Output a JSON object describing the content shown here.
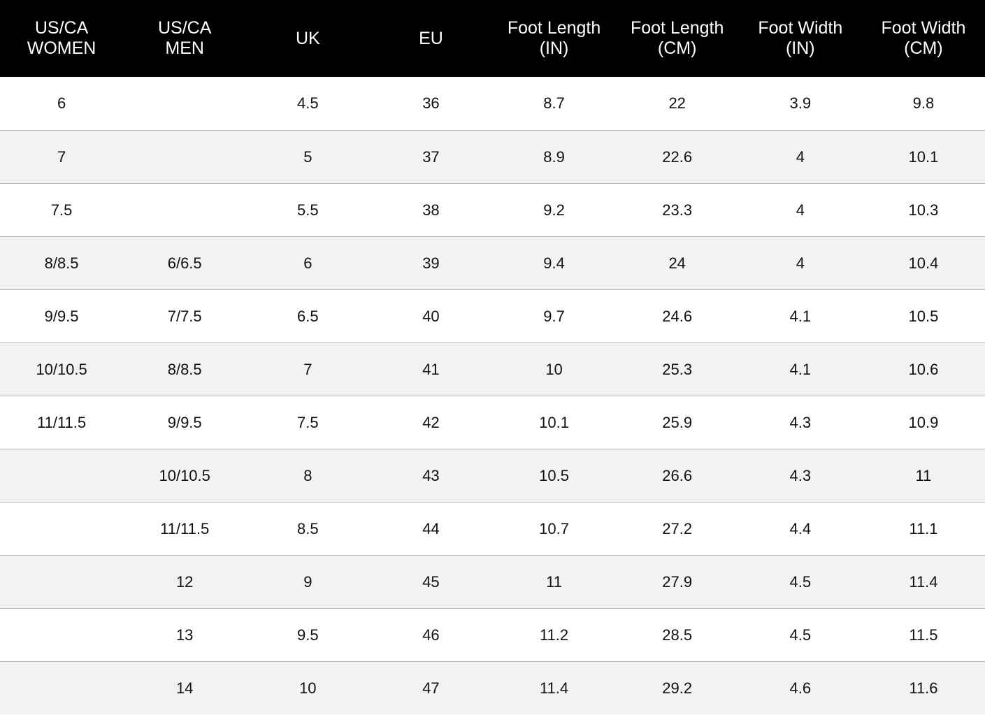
{
  "table": {
    "header": [
      [
        "US/CA",
        "WOMEN"
      ],
      [
        "US/CA",
        "MEN"
      ],
      [
        "UK"
      ],
      [
        "EU"
      ],
      [
        "Foot Length",
        "(IN)"
      ],
      [
        "Foot Length",
        "(CM)"
      ],
      [
        "Foot Width",
        "(IN)"
      ],
      [
        "Foot Width",
        "(CM)"
      ]
    ],
    "rows": [
      [
        "6",
        null,
        "4.5",
        "36",
        "8.7",
        "22",
        "3.9",
        "9.8"
      ],
      [
        "7",
        null,
        "5",
        "37",
        "8.9",
        "22.6",
        "4",
        "10.1"
      ],
      [
        "7.5",
        null,
        "5.5",
        "38",
        "9.2",
        "23.3",
        "4",
        "10.3"
      ],
      [
        "8/8.5",
        "6/6.5",
        "6",
        "39",
        "9.4",
        "24",
        "4",
        "10.4"
      ],
      [
        "9/9.5",
        "7/7.5",
        "6.5",
        "40",
        "9.7",
        "24.6",
        "4.1",
        "10.5"
      ],
      [
        "10/10.5",
        "8/8.5",
        "7",
        "41",
        "10",
        "25.3",
        "4.1",
        "10.6"
      ],
      [
        "11/11.5",
        "9/9.5",
        "7.5",
        "42",
        "10.1",
        "25.9",
        "4.3",
        "10.9"
      ],
      [
        null,
        "10/10.5",
        "8",
        "43",
        "10.5",
        "26.6",
        "4.3",
        "11"
      ],
      [
        null,
        "11/11.5",
        "8.5",
        "44",
        "10.7",
        "27.2",
        "4.4",
        "11.1"
      ],
      [
        null,
        "12",
        "9",
        "45",
        "11",
        "27.9",
        "4.5",
        "11.4"
      ],
      [
        null,
        "13",
        "9.5",
        "46",
        "11.2",
        "28.5",
        "4.5",
        "11.5"
      ],
      [
        null,
        "14",
        "10",
        "47",
        "11.4",
        "29.2",
        "4.6",
        "11.6"
      ]
    ]
  }
}
